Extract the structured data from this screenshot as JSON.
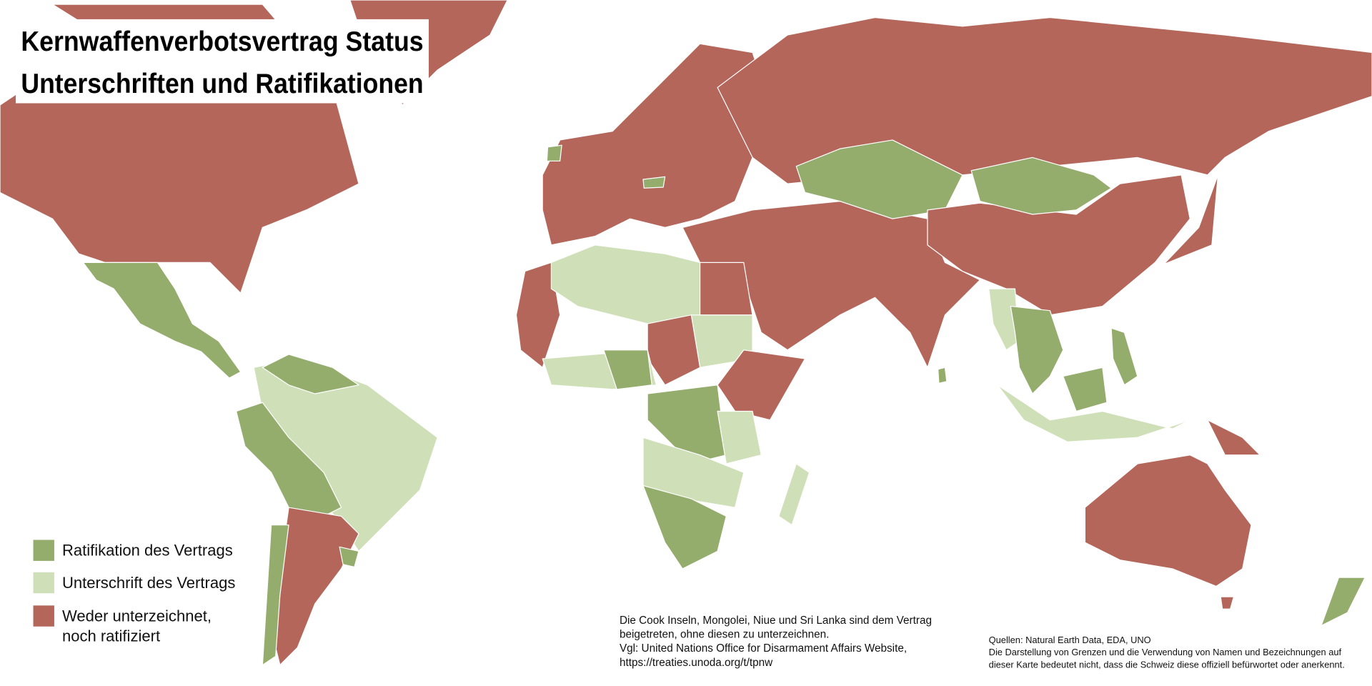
{
  "title": [
    "Kernwaffenverbotsvertrag Status",
    "Unterschriften und Ratifikationen"
  ],
  "legend": [
    {
      "lines": [
        "Ratifikation des Vertrags"
      ],
      "color": "#94ad6c"
    },
    {
      "lines": [
        "Unterschrift des Vertrags"
      ],
      "color": "#cfe0b9"
    },
    {
      "lines": [
        "Weder unterzeichnet,",
        "noch ratifiziert"
      ],
      "color": "#b5665a"
    }
  ],
  "note": [
    "Die Cook Inseln, Mongolei, Niue und Sri Lanka sind dem Vertrag",
    "beigetreten, ohne diesen zu unterzeichnen.",
    "Vgl: United Nations Office for Disarmament Affairs Website,",
    "https://treaties.unoda.org/t/tpnw"
  ],
  "sources": [
    "Quellen: Natural Earth Data, EDA, UNO",
    "Die Darstellung von Grenzen und die Verwendung von Namen und Bezeichnungen auf",
    "dieser Karte bedeutet nicht, dass die Schweiz diese offiziell befürwortet oder anerkennt."
  ]
}
